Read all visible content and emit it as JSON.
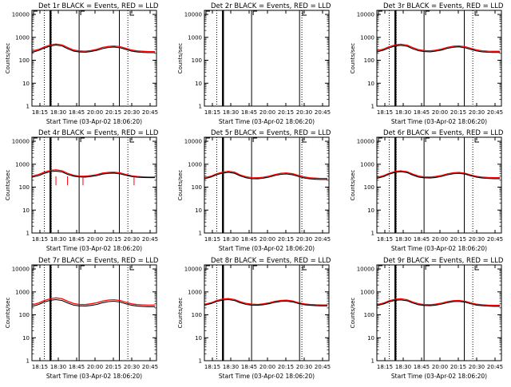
{
  "chart_data": [
    {
      "type": "line",
      "title": "Det 1r BLACK = Events, RED = LLD",
      "xlabel": "Start Time (03-Apr-02 18:06:20)",
      "ylabel": "Counts/sec",
      "xlim": [
        "18:06",
        "20:47"
      ],
      "ylim": [
        1,
        15000
      ],
      "yscale": "log",
      "xticks": [
        "18:15",
        "18:30",
        "18:45",
        "20:00",
        "20:15",
        "20:30",
        "20:45"
      ],
      "yticks": [
        "1",
        "10",
        "100",
        "1000",
        "10000"
      ],
      "has_data": true,
      "lld_dips": false,
      "x": [
        "18:06",
        "18:15",
        "18:22",
        "18:30",
        "18:37",
        "18:45",
        "18:52",
        "19:00",
        "19:07",
        "19:15",
        "19:22",
        "19:30",
        "19:37",
        "19:45",
        "19:52",
        "20:00",
        "20:07",
        "20:15",
        "20:22",
        "20:30",
        "20:37",
        "20:45"
      ],
      "series": [
        {
          "name": "Events",
          "color": "#000000",
          "values": [
            220,
            270,
            340,
            420,
            460,
            420,
            320,
            250,
            230,
            225,
            240,
            270,
            320,
            360,
            380,
            350,
            300,
            250,
            230,
            220,
            215,
            215
          ]
        },
        {
          "name": "LLD",
          "color": "#ff0000",
          "values": [
            250,
            300,
            380,
            470,
            510,
            470,
            360,
            280,
            255,
            250,
            265,
            300,
            360,
            400,
            420,
            390,
            335,
            280,
            255,
            245,
            240,
            240
          ]
        }
      ],
      "vlines_solid": [
        "18:30",
        "19:07",
        "19:59"
      ],
      "vlines_dotted": [
        "18:22",
        "18:31",
        "20:10"
      ],
      "thick_line": "18:30"
    },
    {
      "type": "line",
      "title": "Det 2r BLACK = Events, RED = LLD",
      "xlabel": "Start Time (03-Apr-02 18:06:20)",
      "ylabel": "Counts/sec",
      "xlim": [
        "18:06",
        "20:47"
      ],
      "ylim": [
        1,
        15000
      ],
      "yscale": "log",
      "xticks": [
        "18:15",
        "18:30",
        "18:45",
        "20:00",
        "20:15",
        "20:30",
        "20:45"
      ],
      "yticks": [
        "1",
        "10",
        "100",
        "1000",
        "10000"
      ],
      "has_data": false,
      "lld_dips": false,
      "x": [],
      "series": [],
      "vlines_solid": [
        "18:30",
        "19:07",
        "20:09"
      ],
      "vlines_dotted": [
        "18:22",
        "20:12"
      ],
      "thick_line": "18:30"
    },
    {
      "type": "line",
      "title": "Det 3r BLACK = Events, RED = LLD",
      "xlabel": "Start Time (03-Apr-02 18:06:20)",
      "ylabel": "Counts/sec",
      "xlim": [
        "18:06",
        "20:47"
      ],
      "ylim": [
        1,
        15000
      ],
      "yscale": "log",
      "xticks": [
        "18:15",
        "18:30",
        "18:45",
        "20:00",
        "20:15",
        "20:30",
        "20:45"
      ],
      "yticks": [
        "1",
        "10",
        "100",
        "1000",
        "10000"
      ],
      "has_data": true,
      "lld_dips": false,
      "x": [
        "18:06",
        "18:15",
        "18:22",
        "18:30",
        "18:37",
        "18:45",
        "18:52",
        "19:00",
        "19:07",
        "19:15",
        "19:22",
        "19:30",
        "19:37",
        "19:45",
        "19:52",
        "20:00",
        "20:07",
        "20:15",
        "20:22",
        "20:30",
        "20:37",
        "20:45"
      ],
      "series": [
        {
          "name": "Events",
          "color": "#000000",
          "values": [
            230,
            280,
            350,
            420,
            450,
            410,
            320,
            260,
            240,
            235,
            250,
            280,
            330,
            370,
            385,
            350,
            300,
            255,
            235,
            225,
            220,
            220
          ]
        },
        {
          "name": "LLD",
          "color": "#ff0000",
          "values": [
            260,
            310,
            390,
            470,
            500,
            460,
            360,
            290,
            265,
            260,
            275,
            310,
            365,
            410,
            425,
            390,
            335,
            285,
            260,
            250,
            245,
            245
          ]
        }
      ],
      "vlines_solid": [
        "18:30",
        "19:07",
        "19:59"
      ],
      "vlines_dotted": [
        "18:22",
        "18:31",
        "20:10"
      ],
      "thick_line": "18:30"
    },
    {
      "type": "line",
      "title": "Det 4r BLACK = Events, RED = LLD",
      "xlabel": "Start Time (03-Apr-02 18:06:20)",
      "ylabel": "Counts/sec",
      "xlim": [
        "18:06",
        "20:47"
      ],
      "ylim": [
        1,
        15000
      ],
      "yscale": "log",
      "xticks": [
        "18:15",
        "18:30",
        "18:45",
        "20:00",
        "20:15",
        "20:30",
        "20:45"
      ],
      "yticks": [
        "1",
        "10",
        "100",
        "1000",
        "10000"
      ],
      "has_data": true,
      "lld_dips": true,
      "x": [
        "18:06",
        "18:15",
        "18:22",
        "18:30",
        "18:37",
        "18:45",
        "18:52",
        "19:00",
        "19:07",
        "19:15",
        "19:22",
        "19:30",
        "19:37",
        "19:45",
        "19:52",
        "20:00",
        "20:07",
        "20:15",
        "20:22",
        "20:30",
        "20:37",
        "20:45"
      ],
      "series": [
        {
          "name": "Events",
          "color": "#000000",
          "values": [
            270,
            320,
            400,
            480,
            500,
            460,
            360,
            300,
            280,
            275,
            290,
            320,
            370,
            400,
            410,
            380,
            330,
            290,
            270,
            265,
            260,
            260
          ]
        },
        {
          "name": "LLD",
          "color": "#ff0000",
          "values": [
            300,
            360,
            450,
            540,
            570,
            520,
            400,
            330,
            300,
            300,
            320,
            350,
            410,
            440,
            450,
            420,
            360,
            310,
            290,
            280,
            275,
            275
          ]
        }
      ],
      "vlines_solid": [
        "18:30",
        "19:07",
        "19:59"
      ],
      "vlines_dotted": [
        "18:22",
        "18:31",
        "20:10"
      ],
      "thick_line": "18:30"
    },
    {
      "type": "line",
      "title": "Det 5r BLACK = Events, RED = LLD",
      "xlabel": "Start Time (03-Apr-02 18:06:20)",
      "ylabel": "Counts/sec",
      "xlim": [
        "18:06",
        "20:47"
      ],
      "ylim": [
        1,
        15000
      ],
      "yscale": "log",
      "xticks": [
        "18:15",
        "18:30",
        "18:45",
        "20:00",
        "20:15",
        "20:30",
        "20:45"
      ],
      "yticks": [
        "1",
        "10",
        "100",
        "1000",
        "10000"
      ],
      "has_data": true,
      "lld_dips": false,
      "x": [
        "18:06",
        "18:15",
        "18:22",
        "18:30",
        "18:37",
        "18:45",
        "18:52",
        "19:00",
        "19:07",
        "19:15",
        "19:22",
        "19:30",
        "19:37",
        "19:45",
        "19:52",
        "20:00",
        "20:07",
        "20:15",
        "20:22",
        "20:30",
        "20:37",
        "20:45"
      ],
      "series": [
        {
          "name": "Events",
          "color": "#000000",
          "values": [
            230,
            280,
            350,
            410,
            440,
            400,
            310,
            255,
            235,
            230,
            245,
            275,
            320,
            360,
            375,
            345,
            295,
            250,
            230,
            220,
            215,
            215
          ]
        },
        {
          "name": "LLD",
          "color": "#ff0000",
          "values": [
            255,
            305,
            385,
            455,
            490,
            450,
            345,
            285,
            260,
            255,
            270,
            305,
            355,
            400,
            415,
            385,
            330,
            280,
            255,
            245,
            240,
            240
          ]
        }
      ],
      "vlines_solid": [
        "18:30",
        "19:07",
        "20:09"
      ],
      "vlines_dotted": [
        "18:22",
        "20:12"
      ],
      "thick_line": "18:30"
    },
    {
      "type": "line",
      "title": "Det 6r BLACK = Events, RED = LLD",
      "xlabel": "Start Time (03-Apr-02 18:06:20)",
      "ylabel": "Counts/sec",
      "xlim": [
        "18:06",
        "20:47"
      ],
      "ylim": [
        1,
        15000
      ],
      "yscale": "log",
      "xticks": [
        "18:15",
        "18:30",
        "18:45",
        "20:00",
        "20:15",
        "20:30",
        "20:45"
      ],
      "yticks": [
        "1",
        "10",
        "100",
        "1000",
        "10000"
      ],
      "has_data": true,
      "lld_dips": false,
      "x": [
        "18:06",
        "18:15",
        "18:22",
        "18:30",
        "18:37",
        "18:45",
        "18:52",
        "19:00",
        "19:07",
        "19:15",
        "19:22",
        "19:30",
        "19:37",
        "19:45",
        "19:52",
        "20:00",
        "20:07",
        "20:15",
        "20:22",
        "20:30",
        "20:37",
        "20:45"
      ],
      "series": [
        {
          "name": "Events",
          "color": "#000000",
          "values": [
            240,
            290,
            370,
            440,
            470,
            430,
            340,
            275,
            255,
            250,
            265,
            295,
            345,
            385,
            400,
            370,
            315,
            270,
            250,
            240,
            235,
            235
          ]
        },
        {
          "name": "LLD",
          "color": "#ff0000",
          "values": [
            265,
            320,
            405,
            485,
            520,
            475,
            375,
            305,
            280,
            275,
            290,
            325,
            380,
            425,
            440,
            405,
            345,
            295,
            275,
            265,
            260,
            260
          ]
        }
      ],
      "vlines_solid": [
        "18:30",
        "19:07",
        "19:59"
      ],
      "vlines_dotted": [
        "18:22",
        "18:31",
        "20:10"
      ],
      "thick_line": "18:30"
    },
    {
      "type": "line",
      "title": "Det 7r BLACK = Events, RED = LLD",
      "xlabel": "Start Time (03-Apr-02 18:06:20)",
      "ylabel": "Counts/sec",
      "xlim": [
        "18:06",
        "20:47"
      ],
      "ylim": [
        1,
        15000
      ],
      "yscale": "log",
      "xticks": [
        "18:15",
        "18:30",
        "18:45",
        "20:00",
        "20:15",
        "20:30",
        "20:45"
      ],
      "yticks": [
        "1",
        "10",
        "100",
        "1000",
        "10000"
      ],
      "has_data": true,
      "lld_dips": false,
      "x": [
        "18:06",
        "18:15",
        "18:22",
        "18:30",
        "18:37",
        "18:45",
        "18:52",
        "19:00",
        "19:07",
        "19:15",
        "19:22",
        "19:30",
        "19:37",
        "19:45",
        "19:52",
        "20:00",
        "20:07",
        "20:15",
        "20:22",
        "20:30",
        "20:37",
        "20:45"
      ],
      "series": [
        {
          "name": "Events",
          "color": "#000000",
          "values": [
            230,
            285,
            360,
            430,
            460,
            420,
            330,
            265,
            245,
            240,
            255,
            285,
            335,
            375,
            390,
            360,
            305,
            260,
            240,
            230,
            225,
            225
          ]
        },
        {
          "name": "LLD",
          "color": "#ff0000",
          "values": [
            270,
            330,
            420,
            510,
            550,
            500,
            390,
            310,
            285,
            280,
            300,
            335,
            395,
            440,
            455,
            420,
            355,
            300,
            280,
            270,
            265,
            265
          ]
        }
      ],
      "vlines_solid": [
        "18:30",
        "19:07",
        "19:59"
      ],
      "vlines_dotted": [
        "18:22",
        "18:31",
        "20:10"
      ],
      "thick_line": "18:30"
    },
    {
      "type": "line",
      "title": "Det 8r BLACK = Events, RED = LLD",
      "xlabel": "Start Time (03-Apr-02 18:06:20)",
      "ylabel": "Counts/sec",
      "xlim": [
        "18:06",
        "20:47"
      ],
      "ylim": [
        1,
        15000
      ],
      "yscale": "log",
      "xticks": [
        "18:15",
        "18:30",
        "18:45",
        "20:00",
        "20:15",
        "20:30",
        "20:45"
      ],
      "yticks": [
        "1",
        "10",
        "100",
        "1000",
        "10000"
      ],
      "has_data": true,
      "lld_dips": false,
      "x": [
        "18:06",
        "18:15",
        "18:22",
        "18:30",
        "18:37",
        "18:45",
        "18:52",
        "19:00",
        "19:07",
        "19:15",
        "19:22",
        "19:30",
        "19:37",
        "19:45",
        "19:52",
        "20:00",
        "20:07",
        "20:15",
        "20:22",
        "20:30",
        "20:37",
        "20:45"
      ],
      "series": [
        {
          "name": "Events",
          "color": "#000000",
          "values": [
            260,
            310,
            380,
            440,
            460,
            420,
            340,
            285,
            265,
            260,
            275,
            305,
            350,
            385,
            395,
            365,
            315,
            275,
            260,
            250,
            245,
            245
          ]
        },
        {
          "name": "LLD",
          "color": "#ff0000",
          "values": [
            285,
            340,
            420,
            490,
            510,
            465,
            375,
            315,
            290,
            285,
            300,
            335,
            385,
            425,
            435,
            400,
            345,
            300,
            285,
            275,
            270,
            270
          ]
        }
      ],
      "vlines_solid": [
        "18:30",
        "19:07",
        "20:09"
      ],
      "vlines_dotted": [
        "18:22",
        "20:12"
      ],
      "thick_line": "18:30"
    },
    {
      "type": "line",
      "title": "Det 9r BLACK = Events, RED = LLD",
      "xlabel": "Start Time (03-Apr-02 18:06:20)",
      "ylabel": "Counts/sec",
      "xlim": [
        "18:06",
        "20:47"
      ],
      "ylim": [
        1,
        15000
      ],
      "yscale": "log",
      "xticks": [
        "18:15",
        "18:30",
        "18:45",
        "20:00",
        "20:15",
        "20:30",
        "20:45"
      ],
      "yticks": [
        "1",
        "10",
        "100",
        "1000",
        "10000"
      ],
      "has_data": true,
      "lld_dips": false,
      "x": [
        "18:06",
        "18:15",
        "18:22",
        "18:30",
        "18:37",
        "18:45",
        "18:52",
        "19:00",
        "19:07",
        "19:15",
        "19:22",
        "19:30",
        "19:37",
        "19:45",
        "19:52",
        "20:00",
        "20:07",
        "20:15",
        "20:22",
        "20:30",
        "20:37",
        "20:45"
      ],
      "series": [
        {
          "name": "Events",
          "color": "#000000",
          "values": [
            250,
            300,
            370,
            430,
            450,
            410,
            330,
            275,
            255,
            250,
            265,
            295,
            340,
            375,
            385,
            355,
            305,
            265,
            250,
            240,
            235,
            235
          ]
        },
        {
          "name": "LLD",
          "color": "#ff0000",
          "values": [
            275,
            330,
            410,
            480,
            500,
            455,
            365,
            305,
            280,
            275,
            290,
            325,
            375,
            415,
            425,
            390,
            335,
            290,
            275,
            265,
            260,
            260
          ]
        }
      ],
      "vlines_solid": [
        "18:30",
        "19:07",
        "19:59"
      ],
      "vlines_dotted": [
        "18:22",
        "18:31",
        "20:10"
      ],
      "thick_line": "18:30"
    }
  ]
}
